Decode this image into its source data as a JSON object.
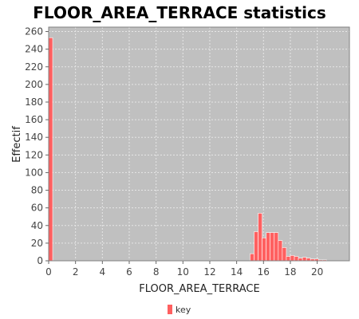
{
  "chart_data": {
    "type": "bar",
    "title": "FLOOR_AREA_TERRACE statistics",
    "xlabel": "FLOOR_AREA_TERRACE",
    "ylabel": "Effectif",
    "xlim": [
      0,
      22.4
    ],
    "ylim": [
      0,
      265
    ],
    "xticks": [
      0,
      2,
      4,
      6,
      8,
      10,
      12,
      14,
      16,
      18,
      20
    ],
    "yticks": [
      0,
      20,
      40,
      60,
      80,
      100,
      120,
      140,
      160,
      180,
      200,
      220,
      240,
      260
    ],
    "grid": true,
    "legend_position": "bottom-center",
    "colors": {
      "plot_background": "#c0c0c0",
      "bar": "#ff6060",
      "bar_edge": "#ffffff",
      "grid": "#e6e6e6",
      "plot_border": "#808080"
    },
    "series": [
      {
        "name": "key",
        "bin_width": 0.3,
        "points": [
          {
            "x": 0.0,
            "y": 253
          },
          {
            "x": 15.0,
            "y": 8
          },
          {
            "x": 15.3,
            "y": 33
          },
          {
            "x": 15.6,
            "y": 54
          },
          {
            "x": 15.9,
            "y": 26
          },
          {
            "x": 16.2,
            "y": 32
          },
          {
            "x": 16.5,
            "y": 32
          },
          {
            "x": 16.8,
            "y": 32
          },
          {
            "x": 17.1,
            "y": 23
          },
          {
            "x": 17.4,
            "y": 15
          },
          {
            "x": 17.7,
            "y": 5
          },
          {
            "x": 18.0,
            "y": 6
          },
          {
            "x": 18.3,
            "y": 5
          },
          {
            "x": 18.6,
            "y": 3
          },
          {
            "x": 18.9,
            "y": 4
          },
          {
            "x": 19.2,
            "y": 3
          },
          {
            "x": 19.5,
            "y": 2
          },
          {
            "x": 19.8,
            "y": 2
          },
          {
            "x": 20.1,
            "y": 1
          },
          {
            "x": 20.4,
            "y": 1
          }
        ]
      }
    ]
  }
}
